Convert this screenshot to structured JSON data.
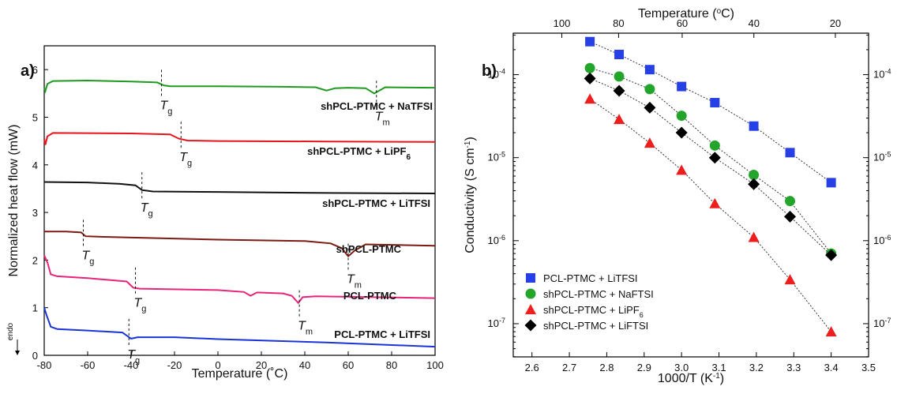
{
  "chart_data": [
    {
      "type": "line",
      "panel_label": "a)",
      "xlabel": "Temperature (˚C)",
      "ylabel": "Normalized heat flow (mW)",
      "side_label": "endo",
      "xlim": [
        -80,
        100
      ],
      "ylim": [
        0,
        6.5
      ],
      "xticks": [
        -80,
        -60,
        -40,
        -20,
        0,
        20,
        40,
        60,
        80,
        100
      ],
      "yticks": [
        0,
        1,
        2,
        3,
        4,
        5,
        6
      ],
      "series": [
        {
          "name": "shPCL-PTMC + NaTFSI",
          "color": "#1f9a1f",
          "points": [
            [
              -80,
              5.62
            ],
            [
              -79.5,
              5.55
            ],
            [
              -78.5,
              5.7
            ],
            [
              -76,
              5.76
            ],
            [
              -60,
              5.77
            ],
            [
              -40,
              5.75
            ],
            [
              -28,
              5.73
            ],
            [
              -25,
              5.67
            ],
            [
              -22,
              5.65
            ],
            [
              0,
              5.65
            ],
            [
              30,
              5.64
            ],
            [
              45,
              5.63
            ],
            [
              50,
              5.56
            ],
            [
              54,
              5.61
            ],
            [
              60,
              5.62
            ],
            [
              68,
              5.61
            ],
            [
              72,
              5.5
            ],
            [
              74,
              5.55
            ],
            [
              77,
              5.63
            ],
            [
              100,
              5.62
            ]
          ],
          "annotations": [
            {
              "base": "T",
              "sub": "g",
              "x": -26,
              "y": 5.73
            },
            {
              "base": "T",
              "sub": "m",
              "x": 73,
              "y": 5.5
            }
          ]
        },
        {
          "name": "shPCL-PTMC + LiPF",
          "name_sub": "6",
          "color": "#e8141b",
          "points": [
            [
              -80,
              4.55
            ],
            [
              -79.5,
              4.42
            ],
            [
              -78.5,
              4.6
            ],
            [
              -76,
              4.67
            ],
            [
              -40,
              4.66
            ],
            [
              -22,
              4.64
            ],
            [
              -18,
              4.55
            ],
            [
              -14,
              4.51
            ],
            [
              0,
              4.5
            ],
            [
              50,
              4.49
            ],
            [
              100,
              4.48
            ]
          ],
          "annotations": [
            {
              "base": "T",
              "sub": "g",
              "x": -17,
              "y": 4.64
            }
          ]
        },
        {
          "name": "shPCL-PTMC + LiTFSI",
          "color": "#111111",
          "points": [
            [
              -80,
              3.64
            ],
            [
              -60,
              3.63
            ],
            [
              -45,
              3.6
            ],
            [
              -38,
              3.57
            ],
            [
              -35,
              3.47
            ],
            [
              -30,
              3.44
            ],
            [
              0,
              3.43
            ],
            [
              50,
              3.41
            ],
            [
              100,
              3.4
            ]
          ],
          "annotations": [
            {
              "base": "T",
              "sub": "g",
              "x": -35,
              "y": 3.58
            }
          ]
        },
        {
          "name": "shPCL-PTMC",
          "color": "#7a1a12",
          "points": [
            [
              -80,
              2.6
            ],
            [
              -70,
              2.6
            ],
            [
              -63,
              2.58
            ],
            [
              -61,
              2.5
            ],
            [
              -55,
              2.49
            ],
            [
              0,
              2.43
            ],
            [
              40,
              2.4
            ],
            [
              52,
              2.35
            ],
            [
              57,
              2.25
            ],
            [
              60,
              2.08
            ],
            [
              63,
              2.2
            ],
            [
              68,
              2.33
            ],
            [
              80,
              2.32
            ],
            [
              100,
              2.3
            ]
          ],
          "annotations": [
            {
              "base": "T",
              "sub": "g",
              "x": -62,
              "y": 2.58
            },
            {
              "base": "T",
              "sub": "m",
              "x": 60,
              "y": 2.08
            }
          ]
        },
        {
          "name": "PCL-PTMC",
          "color": "#e8247a",
          "points": [
            [
              -80,
              2.1
            ],
            [
              -78.5,
              1.95
            ],
            [
              -77,
              1.7
            ],
            [
              -74,
              1.66
            ],
            [
              -60,
              1.62
            ],
            [
              -42,
              1.55
            ],
            [
              -39,
              1.42
            ],
            [
              -36,
              1.4
            ],
            [
              0,
              1.37
            ],
            [
              12,
              1.33
            ],
            [
              15,
              1.25
            ],
            [
              18,
              1.32
            ],
            [
              30,
              1.3
            ],
            [
              34,
              1.25
            ],
            [
              37,
              1.1
            ],
            [
              39,
              1.22
            ],
            [
              45,
              1.24
            ],
            [
              100,
              1.2
            ]
          ],
          "annotations": [
            {
              "base": "T",
              "sub": "g",
              "x": -38,
              "y": 1.58
            },
            {
              "base": "T",
              "sub": "m",
              "x": 37.5,
              "y": 1.1
            }
          ]
        },
        {
          "name": "PCL-PTMC + LiTFSI",
          "color": "#1a33d6",
          "points": [
            [
              -80,
              1.0
            ],
            [
              -79,
              0.85
            ],
            [
              -77,
              0.6
            ],
            [
              -74,
              0.55
            ],
            [
              -60,
              0.52
            ],
            [
              -44,
              0.48
            ],
            [
              -40,
              0.35
            ],
            [
              -37,
              0.38
            ],
            [
              -20,
              0.38
            ],
            [
              0,
              0.34
            ],
            [
              50,
              0.27
            ],
            [
              100,
              0.18
            ]
          ],
          "annotations": [
            {
              "base": "T",
              "sub": "g",
              "x": -41,
              "y": 0.5
            }
          ]
        }
      ]
    },
    {
      "type": "scatter",
      "panel_label": "b)",
      "xlabel": "1000/T (K",
      "xlabel_sup": "-1",
      "xlabel_end": ")",
      "ylabel": "Conductivity (S cm",
      "ylabel_sup": "-1",
      "ylabel_end": ")",
      "top_xlabel": "Temperature (",
      "top_xlabel_sup": "o",
      "top_xlabel_end": "C)",
      "y_scale": "log",
      "xlim": [
        2.55,
        3.5
      ],
      "ylim_exponent": [
        -7.4,
        -3.5
      ],
      "xticks": [
        2.6,
        2.7,
        2.8,
        2.9,
        3.0,
        3.1,
        3.2,
        3.3,
        3.4,
        3.5
      ],
      "xtick_labels": [
        "2.6",
        "2.7",
        "2.8",
        "2.9",
        "3.0",
        "3.1",
        "3.2",
        "3.3",
        "3.4",
        "3.5"
      ],
      "top_xticks_celsius": [
        100,
        80,
        60,
        40,
        20
      ],
      "top_xtick_labels": [
        "100",
        "80",
        "60",
        "40",
        "20"
      ],
      "ytick_exponents": [
        -7,
        -6,
        -5,
        -4
      ],
      "legend_position": "bottom-left",
      "series": [
        {
          "name": "PCL-PTMC + LiTFSI",
          "marker": "square",
          "color": "#2740e6",
          "x": [
            2.755,
            2.833,
            2.915,
            3.0,
            3.089,
            3.193,
            3.29,
            3.4
          ],
          "y": [
            0.00025,
            0.000175,
            0.000115,
            7.2e-05,
            4.6e-05,
            2.4e-05,
            1.15e-05,
            5e-06
          ]
        },
        {
          "name": "shPCL-PTMC + NaFTSI",
          "marker": "circle",
          "color": "#22a52a",
          "x": [
            2.755,
            2.833,
            2.915,
            3.0,
            3.089,
            3.193,
            3.29,
            3.4
          ],
          "y": [
            0.00012,
            9.5e-05,
            6.7e-05,
            3.2e-05,
            1.4e-05,
            6.2e-06,
            3e-06,
            7e-07
          ]
        },
        {
          "name": "shPCL-PTMC + LiPF",
          "name_sub": "6",
          "marker": "triangle",
          "color": "#ee1e1e",
          "x": [
            2.755,
            2.833,
            2.915,
            3.0,
            3.089,
            3.193,
            3.29,
            3.4
          ],
          "y": [
            5.1e-05,
            2.9e-05,
            1.5e-05,
            7.1e-06,
            2.8e-06,
            1.1e-06,
            3.4e-07,
            8e-08
          ]
        },
        {
          "name": "shPCL-PTMC + LiFTSI",
          "marker": "diamond",
          "color": "#000000",
          "x": [
            2.755,
            2.833,
            2.915,
            3.0,
            3.089,
            3.193,
            3.29,
            3.4
          ],
          "y": [
            9e-05,
            6.4e-05,
            4e-05,
            2e-05,
            1e-05,
            4.8e-06,
            1.95e-06,
            6.7e-07
          ]
        }
      ]
    }
  ]
}
